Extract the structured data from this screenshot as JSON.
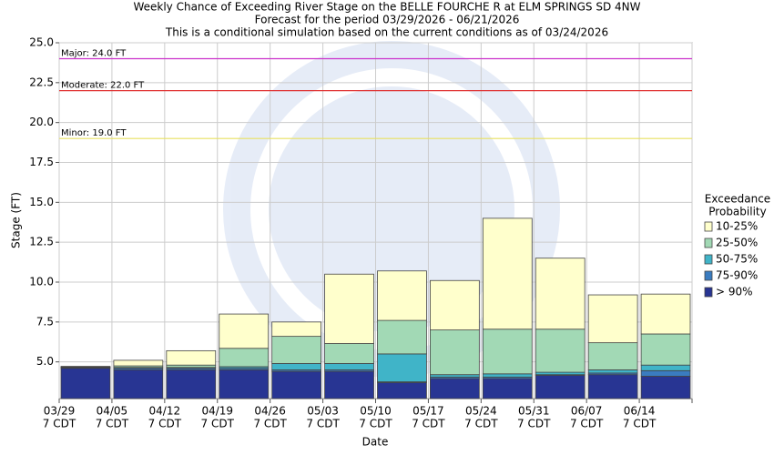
{
  "chart_data": {
    "type": "range-bar",
    "title": "Weekly Chance of Exceeding River Stage on the BELLE FOURCHE R at ELM SPRINGS SD 4NW",
    "subtitle": [
      "Forecast for the period 03/29/2026 - 06/21/2026",
      "This is a conditional simulation based on the current conditions as of 03/24/2026"
    ],
    "y_label": "Stage (FT)",
    "x_label": "Date",
    "categories": [
      "03/29",
      "04/05",
      "04/12",
      "04/19",
      "04/26",
      "05/03",
      "05/10",
      "05/17",
      "05/24",
      "05/31",
      "06/07",
      "06/14"
    ],
    "category_sublabel": "7 CDT",
    "ylim": [
      2.7,
      25
    ],
    "yticks": [
      {
        "value": 5,
        "label": "5.0"
      },
      {
        "value": 7.5,
        "label": "7.5"
      },
      {
        "value": 10,
        "label": "10.0"
      },
      {
        "value": 12.5,
        "label": "12.5"
      },
      {
        "value": 15,
        "label": "15.0"
      },
      {
        "value": 17.5,
        "label": "17.5"
      },
      {
        "value": 20,
        "label": "20.0"
      },
      {
        "value": 22.5,
        "label": "22.5"
      },
      {
        "value": 25,
        "label": "25.0"
      }
    ],
    "grid": true,
    "flood_stages": [
      {
        "label": "Major: 24.0 FT",
        "value": 24,
        "color": "#cc33cc"
      },
      {
        "label": "Moderate: 22.0 FT",
        "value": 22,
        "color": "#e03030"
      },
      {
        "label": "Minor: 19.0 FT",
        "value": 19,
        "color": "#e8e060"
      }
    ],
    "legend_title": [
      "Exceedance",
      "Probability"
    ],
    "series": [
      {
        "name": "> 90%",
        "color": "#283593",
        "values": [
          4.6,
          4.5,
          4.5,
          4.5,
          4.4,
          4.4,
          3.7,
          3.95,
          3.95,
          4.15,
          4.2,
          4.1
        ]
      },
      {
        "name": "75-90%",
        "color": "#3a7cc0",
        "values": [
          4.62,
          4.6,
          4.6,
          4.6,
          4.5,
          4.5,
          3.75,
          4.05,
          4.05,
          4.2,
          4.3,
          4.45
        ]
      },
      {
        "name": "50-75%",
        "color": "#40b4c8",
        "values": [
          4.65,
          4.65,
          4.65,
          4.7,
          4.9,
          4.9,
          5.5,
          4.2,
          4.25,
          4.35,
          4.5,
          4.8
        ]
      },
      {
        "name": "25-50%",
        "color": "#a2d9b5",
        "values": [
          4.68,
          4.75,
          4.8,
          5.85,
          6.6,
          6.15,
          7.6,
          7.0,
          7.05,
          7.05,
          6.2,
          6.75
        ]
      },
      {
        "name": "10-25%",
        "color": "#ffffcc",
        "values": [
          4.72,
          5.1,
          5.7,
          8.0,
          7.5,
          10.5,
          10.7,
          10.1,
          14.0,
          11.5,
          9.2,
          9.25
        ]
      }
    ]
  }
}
